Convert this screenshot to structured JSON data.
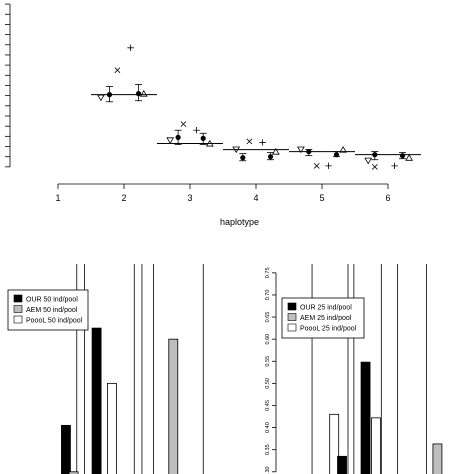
{
  "chart_data": [
    {
      "type": "scatter",
      "title": "",
      "xlabel": "haplotype",
      "ylabel": "",
      "xlim": [
        0.8,
        6.6
      ],
      "xticks": [
        1,
        2,
        3,
        4,
        5,
        6
      ],
      "truth_segments": [
        {
          "x0": 1.5,
          "x1": 2.5,
          "y": 3.55
        },
        {
          "x0": 2.5,
          "x1": 3.5,
          "y": 1.15
        },
        {
          "x0": 3.5,
          "x1": 4.5,
          "y": 0.85
        },
        {
          "x0": 4.5,
          "x1": 5.5,
          "y": 0.75
        },
        {
          "x0": 5.5,
          "x1": 6.5,
          "y": 0.6
        }
      ],
      "estimates": [
        {
          "x": 1.78,
          "y": 3.55,
          "lo": 3.2,
          "hi": 3.95
        },
        {
          "x": 2.22,
          "y": 3.6,
          "lo": 3.25,
          "hi": 4.05
        },
        {
          "x": 2.82,
          "y": 1.45,
          "lo": 1.1,
          "hi": 1.8
        },
        {
          "x": 3.2,
          "y": 1.4,
          "lo": 1.1,
          "hi": 1.65
        },
        {
          "x": 3.8,
          "y": 0.45,
          "lo": 0.3,
          "hi": 0.65
        },
        {
          "x": 4.22,
          "y": 0.5,
          "lo": 0.35,
          "hi": 0.7
        },
        {
          "x": 4.8,
          "y": 0.75,
          "lo": 0.55,
          "hi": 0.85
        },
        {
          "x": 5.22,
          "y": 0.6,
          "lo": 0.5,
          "hi": 0.75
        },
        {
          "x": 5.8,
          "y": 0.6,
          "lo": 0.35,
          "hi": 0.75
        },
        {
          "x": 6.22,
          "y": 0.55,
          "lo": 0.4,
          "hi": 0.7
        }
      ],
      "markers": {
        "x_cross": [
          [
            1.9,
            4.75
          ],
          [
            2.9,
            2.1
          ],
          [
            3.9,
            1.25
          ],
          [
            4.92,
            0.05
          ],
          [
            5.8,
            0.0
          ]
        ],
        "plus": [
          [
            2.1,
            5.85
          ],
          [
            3.1,
            1.8
          ],
          [
            4.1,
            1.2
          ],
          [
            5.1,
            0.05
          ],
          [
            6.1,
            0.05
          ]
        ],
        "triangle_down": [
          [
            1.65,
            3.4
          ],
          [
            2.7,
            1.3
          ],
          [
            3.7,
            0.85
          ],
          [
            4.68,
            0.85
          ],
          [
            5.7,
            0.3
          ]
        ],
        "triangle_up": [
          [
            2.3,
            3.6
          ],
          [
            3.3,
            1.15
          ],
          [
            4.3,
            0.75
          ],
          [
            5.32,
            0.85
          ],
          [
            6.32,
            0.45
          ]
        ]
      },
      "ylim": [
        -0.4,
        8.2
      ],
      "yticks_unlabeled": [
        0,
        0.5,
        1,
        1.5,
        2,
        2.5,
        3,
        3.5,
        4,
        4.5,
        5,
        5.5,
        6,
        6.5,
        7,
        7.5,
        8
      ]
    },
    {
      "type": "bar",
      "title": "",
      "xlabel": "",
      "ylabel": "",
      "legend": [
        "OUR 50 ind/pool",
        "AEM 50 ind/pool",
        "PoooL 50 ind/pool"
      ],
      "legend_position": "top-left",
      "xlim": [
        0,
        3
      ],
      "ylim": [
        0.295,
        0.77
      ],
      "bars": [
        {
          "series": "OUR 50 ind/pool",
          "x": 1.01,
          "value": 0.405
        },
        {
          "series": "AEM 50 ind/pool",
          "x": 1.11,
          "value": 0.3
        },
        {
          "series": "OUR 50 ind/pool",
          "x": 1.41,
          "value": 0.625
        },
        {
          "series": "PoooL 50 ind/pool",
          "x": 1.61,
          "value": 0.5
        },
        {
          "series": "AEM 50 ind/pool",
          "x": 2.41,
          "value": 0.6
        }
      ],
      "vlines": [
        1.21,
        1.31,
        1.96,
        2.06,
        2.21,
        2.86
      ]
    },
    {
      "type": "bar",
      "title": "",
      "xlabel": "",
      "ylabel": "",
      "legend": [
        "OUR 25 ind/pool",
        "AEM 25 ind/pool",
        "PoooL 25 ind/pool"
      ],
      "legend_position": "top-left",
      "xlim": [
        0,
        3
      ],
      "ylim": [
        0.295,
        0.77
      ],
      "yticks": [
        "0.30",
        "0.35",
        "0.40",
        "0.45",
        "0.50",
        "0.55",
        "0.60",
        "0.65",
        "0.70",
        "0.75"
      ],
      "bars": [
        {
          "series": "PoooL 25 ind/pool",
          "x": 0.73,
          "value": 0.43
        },
        {
          "series": "OUR 25 ind/pool",
          "x": 0.85,
          "value": 0.335
        },
        {
          "series": "OUR 25 ind/pool",
          "x": 1.21,
          "value": 0.548
        },
        {
          "series": "PoooL 25 ind/pool",
          "x": 1.37,
          "value": 0.422
        },
        {
          "series": "AEM 25 ind/pool",
          "x": 2.31,
          "value": 0.363
        }
      ],
      "vlines": [
        0.46,
        1.01,
        1.1,
        1.52,
        1.77,
        2.21
      ]
    }
  ],
  "colors": {
    "OUR": "#000000",
    "AEM": "#bebebe",
    "PoooL": "#ffffff",
    "ink": "#000000"
  }
}
